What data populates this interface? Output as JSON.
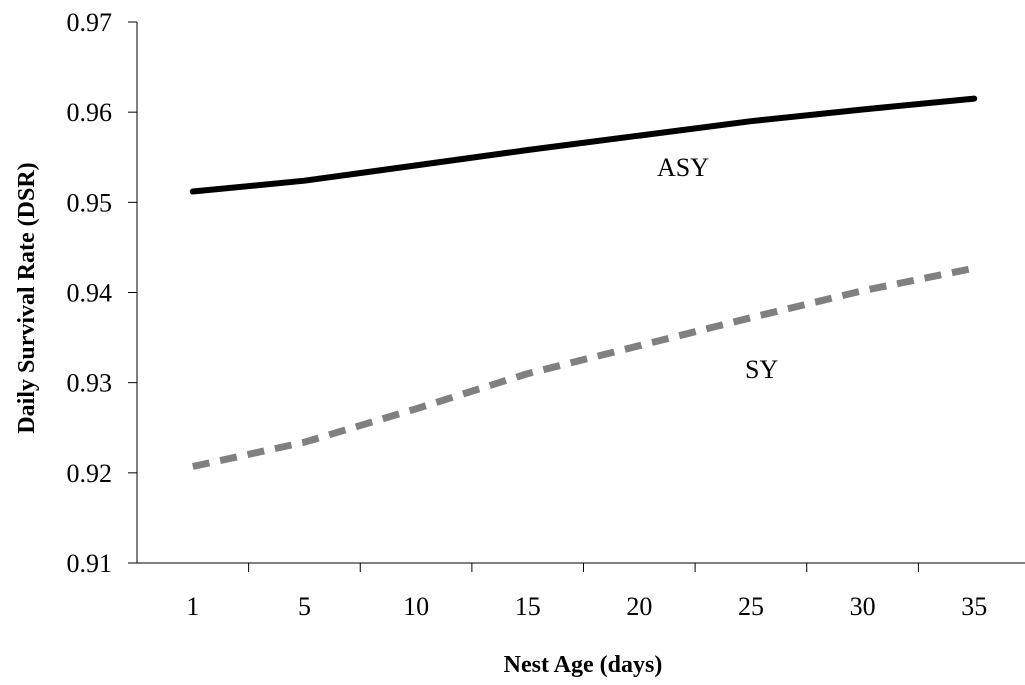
{
  "chart_data": {
    "type": "line",
    "title": "",
    "xlabel": "Nest Age (days)",
    "ylabel": "Daily Survival Rate (DSR)",
    "categories": [
      "1",
      "5",
      "10",
      "15",
      "20",
      "25",
      "30",
      "35"
    ],
    "ylim": [
      0.91,
      0.97
    ],
    "yticks": [
      "0.91",
      "0.92",
      "0.93",
      "0.94",
      "0.95",
      "0.96",
      "0.97"
    ],
    "grid": false,
    "legend": "none",
    "series": [
      {
        "name": "ASY",
        "values": [
          0.9512,
          0.9524,
          0.9541,
          0.9558,
          0.9574,
          0.959,
          0.9603,
          0.9615
        ],
        "color": "#000000",
        "style": "solid"
      },
      {
        "name": "SY",
        "values": [
          0.9207,
          0.9234,
          0.9271,
          0.931,
          0.9341,
          0.9372,
          0.9402,
          0.9427
        ],
        "color": "#808080",
        "style": "dashed"
      }
    ]
  }
}
